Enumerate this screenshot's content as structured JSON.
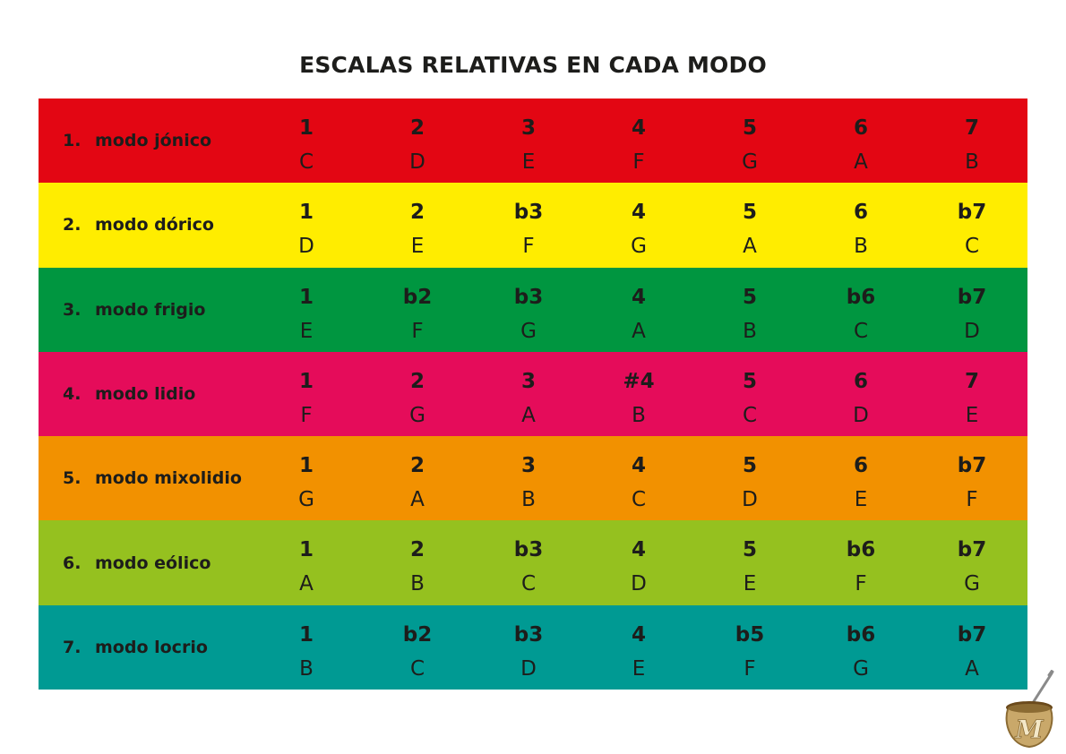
{
  "title": "ESCALAS RELATIVAS EN CADA MODO",
  "modes": [
    {
      "number": "1.",
      "name": "modo jónico",
      "color": "#e30613",
      "degrees": [
        "1",
        "2",
        "3",
        "4",
        "5",
        "6",
        "7"
      ],
      "notes": [
        "C",
        "D",
        "E",
        "F",
        "G",
        "A",
        "B"
      ]
    },
    {
      "number": "2.",
      "name": "modo dórico",
      "color": "#ffed00",
      "degrees": [
        "1",
        "2",
        "b3",
        "4",
        "5",
        "6",
        "b7"
      ],
      "notes": [
        "D",
        "E",
        "F",
        "G",
        "A",
        "B",
        "C"
      ]
    },
    {
      "number": "3.",
      "name": "modo frigio",
      "color": "#009640",
      "degrees": [
        "1",
        "b2",
        "b3",
        "4",
        "5",
        "b6",
        "b7"
      ],
      "notes": [
        "E",
        "F",
        "G",
        "A",
        "B",
        "C",
        "D"
      ]
    },
    {
      "number": "4.",
      "name": "modo lidio",
      "color": "#e50c5a",
      "degrees": [
        "1",
        "2",
        "3",
        "#4",
        "5",
        "6",
        "7"
      ],
      "notes": [
        "F",
        "G",
        "A",
        "B",
        "C",
        "D",
        "E"
      ]
    },
    {
      "number": "5.",
      "name": "modo mixolidio",
      "color": "#f29100",
      "degrees": [
        "1",
        "2",
        "3",
        "4",
        "5",
        "6",
        "b7"
      ],
      "notes": [
        "G",
        "A",
        "B",
        "C",
        "D",
        "E",
        "F"
      ]
    },
    {
      "number": "6.",
      "name": "modo eólico",
      "color": "#95c11f",
      "degrees": [
        "1",
        "2",
        "b3",
        "4",
        "5",
        "b6",
        "b7"
      ],
      "notes": [
        "A",
        "B",
        "C",
        "D",
        "E",
        "F",
        "G"
      ]
    },
    {
      "number": "7.",
      "name": "modo locrio",
      "color": "#009a93",
      "degrees": [
        "1",
        "b2",
        "b3",
        "4",
        "b5",
        "b6",
        "b7"
      ],
      "notes": [
        "B",
        "C",
        "D",
        "E",
        "F",
        "G",
        "A"
      ]
    }
  ],
  "logo": {
    "letter": "M",
    "icon": "mate-gourd-icon"
  }
}
